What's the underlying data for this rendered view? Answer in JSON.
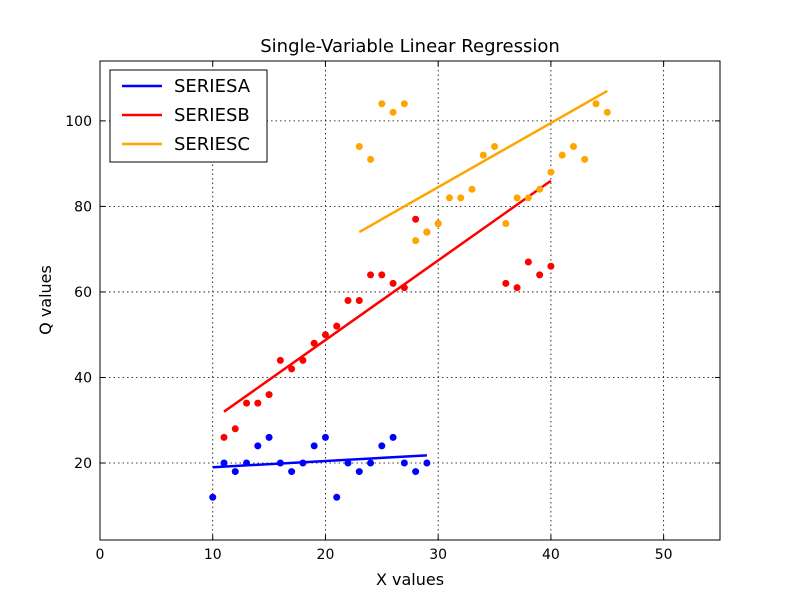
{
  "chart_data": {
    "type": "scatter",
    "title": "Single-Variable Linear Regression",
    "xlabel": "X values",
    "ylabel": "Q values",
    "xlim": [
      0,
      55
    ],
    "ylim": [
      2,
      114
    ],
    "xticks": [
      0,
      10,
      20,
      30,
      40,
      50
    ],
    "yticks": [
      20,
      40,
      60,
      80,
      100
    ],
    "grid": true,
    "legend_position": "top-left",
    "series": [
      {
        "name": "SERIESA",
        "color": "#0000ff",
        "points": [
          [
            10,
            12
          ],
          [
            11,
            20
          ],
          [
            12,
            18
          ],
          [
            13,
            20
          ],
          [
            14,
            24
          ],
          [
            15,
            26
          ],
          [
            16,
            20
          ],
          [
            17,
            18
          ],
          [
            18,
            20
          ],
          [
            19,
            24
          ],
          [
            20,
            26
          ],
          [
            21,
            12
          ],
          [
            22,
            20
          ],
          [
            23,
            18
          ],
          [
            24,
            20
          ],
          [
            25,
            24
          ],
          [
            26,
            26
          ],
          [
            27,
            20
          ],
          [
            28,
            18
          ],
          [
            29,
            20
          ]
        ],
        "fit": [
          [
            10,
            19
          ],
          [
            29,
            21.8
          ]
        ]
      },
      {
        "name": "SERIESB",
        "color": "#ff0000",
        "points": [
          [
            11,
            26
          ],
          [
            12,
            28
          ],
          [
            13,
            34
          ],
          [
            14,
            34
          ],
          [
            15,
            36
          ],
          [
            16,
            44
          ],
          [
            17,
            42
          ],
          [
            18,
            44
          ],
          [
            19,
            48
          ],
          [
            20,
            50
          ],
          [
            21,
            52
          ],
          [
            22,
            58
          ],
          [
            23,
            58
          ],
          [
            24,
            64
          ],
          [
            25,
            64
          ],
          [
            26,
            62
          ],
          [
            27,
            61
          ],
          [
            28,
            77
          ],
          [
            29,
            74
          ],
          [
            30,
            76
          ],
          [
            36,
            62
          ],
          [
            37,
            61
          ],
          [
            38,
            67
          ],
          [
            39,
            64
          ],
          [
            40,
            66
          ]
        ],
        "fit": [
          [
            11,
            32
          ],
          [
            40,
            86
          ]
        ]
      },
      {
        "name": "SERIESC",
        "color": "#ffa500",
        "points": [
          [
            23,
            94
          ],
          [
            24,
            91
          ],
          [
            25,
            104
          ],
          [
            26,
            102
          ],
          [
            27,
            104
          ],
          [
            28,
            72
          ],
          [
            29,
            74
          ],
          [
            30,
            76
          ],
          [
            31,
            82
          ],
          [
            32,
            82
          ],
          [
            33,
            84
          ],
          [
            34,
            92
          ],
          [
            35,
            94
          ],
          [
            36,
            76
          ],
          [
            37,
            82
          ],
          [
            38,
            82
          ],
          [
            39,
            84
          ],
          [
            40,
            88
          ],
          [
            41,
            92
          ],
          [
            42,
            94
          ],
          [
            43,
            91
          ],
          [
            44,
            104
          ],
          [
            45,
            102
          ]
        ],
        "fit": [
          [
            23,
            74
          ],
          [
            45,
            107
          ]
        ]
      }
    ]
  }
}
